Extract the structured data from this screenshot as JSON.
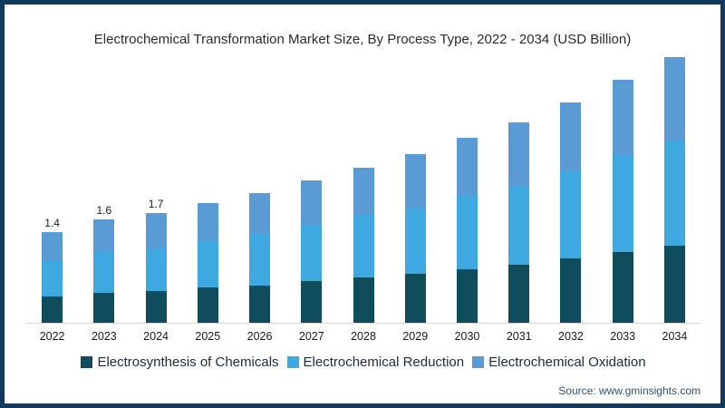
{
  "page": {
    "title": "Electrochemical Transformation Market Size, By Process Type, 2022 - 2034 (USD Billion)",
    "source": "Source: www.gminsights.com",
    "border_color": "#133a5e",
    "background": "#ffffff",
    "axis_line_color": "#d8d8d8"
  },
  "chart_data": {
    "type": "bar",
    "stacked": true,
    "title": "Electrochemical Transformation Market Size, By Process Type, 2022 - 2034 (USD Billion)",
    "unit": "USD Billion",
    "categories": [
      "2022",
      "2023",
      "2024",
      "2025",
      "2026",
      "2027",
      "2028",
      "2029",
      "2030",
      "2031",
      "2032",
      "2033",
      "2034"
    ],
    "series": [
      {
        "name": "Electrosynthesis of Chemicals",
        "color": "#0f4c5c",
        "values": [
          0.41,
          0.46,
          0.49,
          0.54,
          0.58,
          0.64,
          0.7,
          0.75,
          0.83,
          0.9,
          0.99,
          1.09,
          1.19
        ]
      },
      {
        "name": "Electrochemical Reduction",
        "color": "#3da9e0",
        "values": [
          0.55,
          0.63,
          0.67,
          0.73,
          0.79,
          0.87,
          0.95,
          1.03,
          1.13,
          1.22,
          1.34,
          1.48,
          1.62
        ]
      },
      {
        "name": "Electrochemical Oxidation",
        "color": "#5b9bd5",
        "values": [
          0.44,
          0.51,
          0.54,
          0.58,
          0.63,
          0.69,
          0.75,
          0.82,
          0.89,
          0.98,
          1.07,
          1.18,
          1.29
        ]
      }
    ],
    "totals": [
      1.4,
      1.6,
      1.7,
      1.85,
      2.0,
      2.2,
      2.4,
      2.6,
      2.85,
      3.1,
      3.4,
      3.75,
      4.1
    ],
    "data_labels": [
      "1.4",
      "1.6",
      "1.7",
      "",
      "",
      "",
      "",
      "",
      "",
      "",
      "",
      "",
      ""
    ],
    "xlabel": "",
    "ylabel": "",
    "ylim": [
      0,
      4.2
    ],
    "grid": false,
    "legend_position": "bottom"
  }
}
